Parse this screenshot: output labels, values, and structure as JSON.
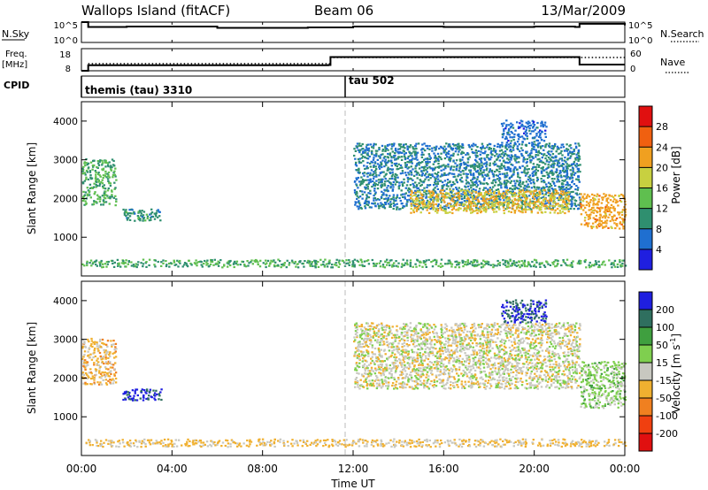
{
  "header": {
    "title": "Wallops Island (fitACF)",
    "beam": "Beam 06",
    "date": "13/Mar/2009"
  },
  "nsky": {
    "label": "N.Sky",
    "ticks": [
      "10^5",
      "10^0"
    ],
    "right_label": "N.Search",
    "right_ticks": [
      "10^5",
      "10^0"
    ]
  },
  "freq": {
    "label_line1": "Freq.",
    "label_line2": "[MHz]",
    "ticks": [
      "18",
      "8"
    ],
    "right_label": "Nave",
    "right_ticks": [
      "60",
      "0"
    ]
  },
  "cpid": {
    "label": "CPID",
    "segments": [
      "themis (tau) 3310",
      "tau 502"
    ]
  },
  "x_axis": {
    "ticks": [
      "00:00",
      "04:00",
      "08:00",
      "12:00",
      "16:00",
      "20:00",
      "00:00"
    ],
    "label": "Time UT"
  },
  "power_panel": {
    "ylabel": "Slant Range [km]",
    "yticks": [
      "1000",
      "2000",
      "3000",
      "4000"
    ],
    "colorbar_label": "Power [dB]",
    "colorbar_ticks": [
      "4",
      "8",
      "12",
      "16",
      "20",
      "24",
      "28"
    ],
    "colors": [
      "#1f1fe0",
      "#1f6fd0",
      "#2f8f6f",
      "#5fbf4f",
      "#c8d040",
      "#f0a020",
      "#f06010",
      "#e01010"
    ]
  },
  "velocity_panel": {
    "ylabel": "Slant Range [km]",
    "yticks": [
      "1000",
      "2000",
      "3000",
      "4000"
    ],
    "colorbar_label": "Velocity [m s",
    "colorbar_label_sup": "-1",
    "colorbar_label_end": "]",
    "colorbar_ticks": [
      "200",
      "100",
      "50",
      "15",
      "-15",
      "-50",
      "-100",
      "-200"
    ],
    "colors": [
      "#1f1fe0",
      "#2f6f5f",
      "#3f9f3f",
      "#7fcf4f",
      "#c8c8c0",
      "#f0b030",
      "#f08020",
      "#f04010",
      "#e01010"
    ]
  },
  "chart_data": [
    {
      "type": "line",
      "title": "N.Sky / N.Search",
      "x": [
        0,
        0.3,
        2,
        6,
        10,
        12,
        16,
        20,
        21.8,
        22,
        24
      ],
      "series": [
        {
          "name": "N.Sky",
          "values": [
            5,
            3.8,
            3.9,
            3.6,
            3.7,
            3.9,
            3.8,
            3.9,
            3.8,
            4.6,
            4.2
          ]
        }
      ],
      "xlabel": "",
      "ylabel": "N.Sky",
      "ylim": [
        0,
        5
      ]
    },
    {
      "type": "line",
      "title": "Freq. / Nave",
      "x": [
        0,
        0.3,
        10.9,
        11,
        21.9,
        22,
        24
      ],
      "series": [
        {
          "name": "Freq.",
          "values": [
            8,
            10.5,
            10.6,
            14.2,
            14.2,
            10.8,
            10.8
          ]
        }
      ],
      "xlabel": "",
      "ylabel": "Freq. [MHz]",
      "ylim": [
        8,
        18
      ]
    },
    {
      "type": "heatmap",
      "title": "Power",
      "xlabel": "Time UT",
      "ylabel": "Slant Range [km]",
      "xlim": [
        0,
        24
      ],
      "ylim": [
        0,
        4500
      ],
      "colorbar": {
        "label": "Power [dB]",
        "range": [
          0,
          32
        ]
      },
      "regions": [
        {
          "t": [
            0.0,
            1.5
          ],
          "r": [
            1800,
            3000
          ],
          "value": 12
        },
        {
          "t": [
            1.8,
            3.5
          ],
          "r": [
            1400,
            1700
          ],
          "value": 10
        },
        {
          "t": [
            12.0,
            22.0
          ],
          "r": [
            1700,
            3400
          ],
          "value": 8
        },
        {
          "t": [
            14.5,
            21.5
          ],
          "r": [
            1600,
            2200
          ],
          "value": 20
        },
        {
          "t": [
            18.5,
            20.5
          ],
          "r": [
            3400,
            4000
          ],
          "value": 6
        },
        {
          "t": [
            22.0,
            24.0
          ],
          "r": [
            1200,
            2100
          ],
          "value": 22
        },
        {
          "t": [
            0.0,
            24.0
          ],
          "r": [
            200,
            400
          ],
          "value": 12
        }
      ]
    },
    {
      "type": "heatmap",
      "title": "Velocity",
      "xlabel": "Time UT",
      "ylabel": "Slant Range [km]",
      "xlim": [
        0,
        24
      ],
      "ylim": [
        0,
        4500
      ],
      "colorbar": {
        "label": "Velocity [m s-1]",
        "range": [
          -200,
          200
        ]
      },
      "regions": [
        {
          "t": [
            0.0,
            1.5
          ],
          "r": [
            1800,
            3000
          ],
          "value": -30
        },
        {
          "t": [
            1.8,
            3.5
          ],
          "r": [
            1400,
            1700
          ],
          "value": 200
        },
        {
          "t": [
            12.0,
            22.0
          ],
          "r": [
            1700,
            3400
          ],
          "value": 0
        },
        {
          "t": [
            18.5,
            20.5
          ],
          "r": [
            3400,
            4000
          ],
          "value": 200
        },
        {
          "t": [
            22.0,
            24.0
          ],
          "r": [
            1200,
            2400
          ],
          "value": 30
        },
        {
          "t": [
            0.0,
            24.0
          ],
          "r": [
            200,
            400
          ],
          "value": -20
        }
      ]
    }
  ]
}
